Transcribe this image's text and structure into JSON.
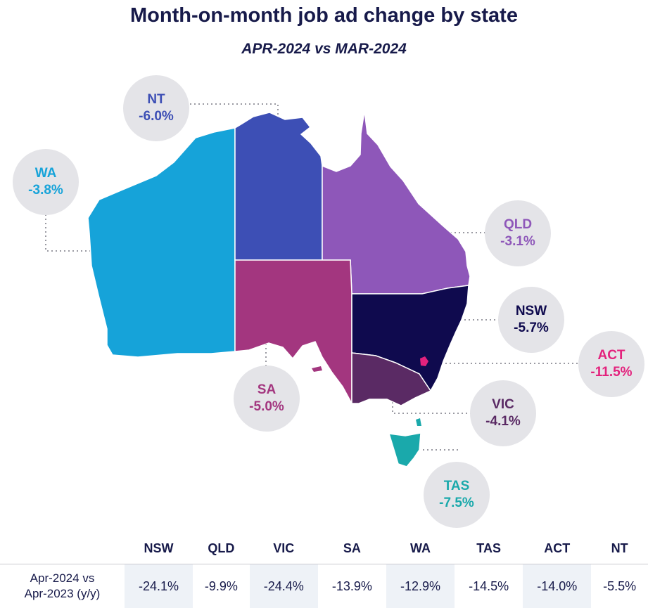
{
  "title": "Month-on-month job ad change by state",
  "subtitle": "APR-2024 vs MAR-2024",
  "states": {
    "nt": {
      "name": "NT",
      "value": "-6.0%",
      "color": "#3d4fb5"
    },
    "wa": {
      "name": "WA",
      "value": "-3.8%",
      "color": "#16a3d9"
    },
    "qld": {
      "name": "QLD",
      "value": "-3.1%",
      "color": "#8e57b9"
    },
    "nsw": {
      "name": "NSW",
      "value": "-5.7%",
      "color": "#0f0a4e"
    },
    "act": {
      "name": "ACT",
      "value": "-11.5%",
      "color": "#e3227d"
    },
    "sa": {
      "name": "SA",
      "value": "-5.0%",
      "color": "#a3367f"
    },
    "vic": {
      "name": "VIC",
      "value": "-4.1%",
      "color": "#5a2a64"
    },
    "tas": {
      "name": "TAS",
      "value": "-7.5%",
      "color": "#1aa9ab"
    }
  },
  "table": {
    "headers": [
      "NSW",
      "QLD",
      "VIC",
      "SA",
      "WA",
      "TAS",
      "ACT",
      "NT"
    ],
    "row_label_line1": "Apr-2024 vs",
    "row_label_line2": "Apr-2023 (y/y)",
    "values": [
      "-24.1%",
      "-9.9%",
      "-24.4%",
      "-13.9%",
      "-12.9%",
      "-14.5%",
      "-14.0%",
      "-5.5%"
    ]
  }
}
